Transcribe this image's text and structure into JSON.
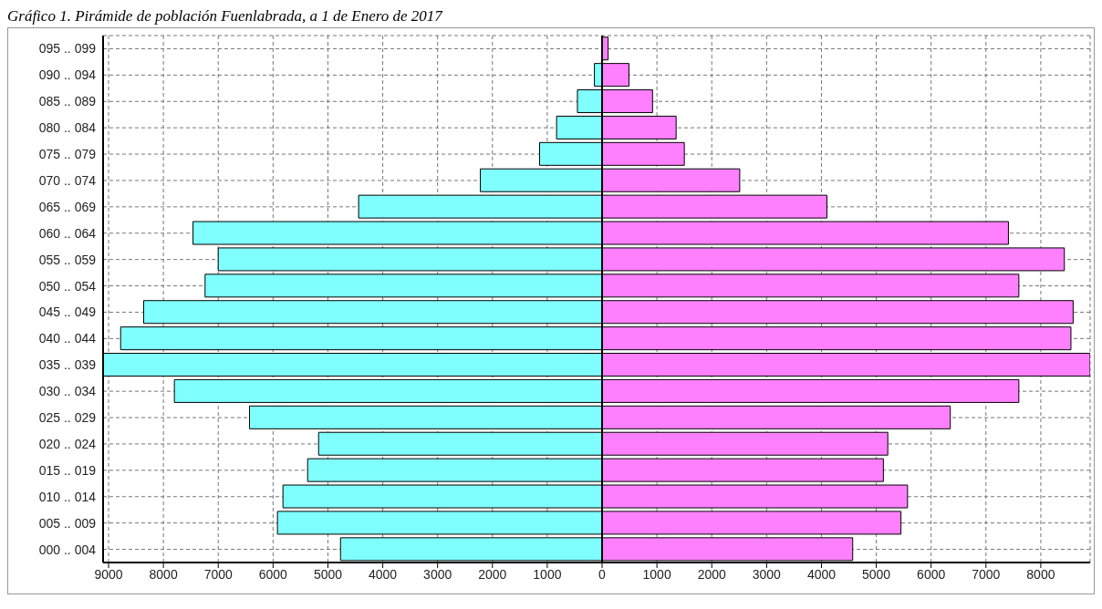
{
  "chart_data": {
    "type": "bar",
    "orientation": "horizontal",
    "stacked": true,
    "title": "Gráfico 1. Pirámide de población Fuenlabrada, a 1 de Enero de 2017",
    "categories": [
      "095 .. 099",
      "090 .. 094",
      "085 .. 089",
      "080 .. 084",
      "075 .. 079",
      "070 .. 074",
      "065 .. 069",
      "060 .. 064",
      "055 .. 059",
      "050 .. 054",
      "045 .. 049",
      "040 .. 044",
      "035 .. 039",
      "030 .. 034",
      "025 .. 029",
      "020 .. 024",
      "015 .. 019",
      "010 .. 014",
      "005 .. 009",
      "000 .. 004"
    ],
    "series": [
      {
        "color": "#80ffff",
        "values": [
          null,
          -140,
          -450,
          -830,
          -1140,
          -2220,
          -4440,
          -7460,
          -7000,
          -7240,
          -8360,
          -8780,
          -9100,
          -7800,
          -6430,
          -5170,
          -5370,
          -5820,
          -5920,
          -4770
        ]
      },
      {
        "color": "#ff80ff",
        "values": [
          110,
          490,
          920,
          1350,
          1500,
          2510,
          4100,
          7410,
          8430,
          7600,
          8590,
          8550,
          8900,
          7600,
          6350,
          5210,
          5130,
          5570,
          5450,
          4570
        ]
      }
    ],
    "xlim": [
      -9100,
      8900
    ],
    "xticks": [
      {
        "value": -9000,
        "label": "9000"
      },
      {
        "value": -8000,
        "label": "8000"
      },
      {
        "value": -7000,
        "label": "7000"
      },
      {
        "value": -6000,
        "label": "6000"
      },
      {
        "value": -5000,
        "label": "5000"
      },
      {
        "value": -4000,
        "label": "4000"
      },
      {
        "value": -3000,
        "label": "3000"
      },
      {
        "value": -2000,
        "label": "2000"
      },
      {
        "value": -1000,
        "label": "1000"
      },
      0,
      1000,
      2000,
      3000,
      4000,
      5000,
      6000,
      7000,
      8000
    ],
    "grid": true,
    "legend": false
  }
}
